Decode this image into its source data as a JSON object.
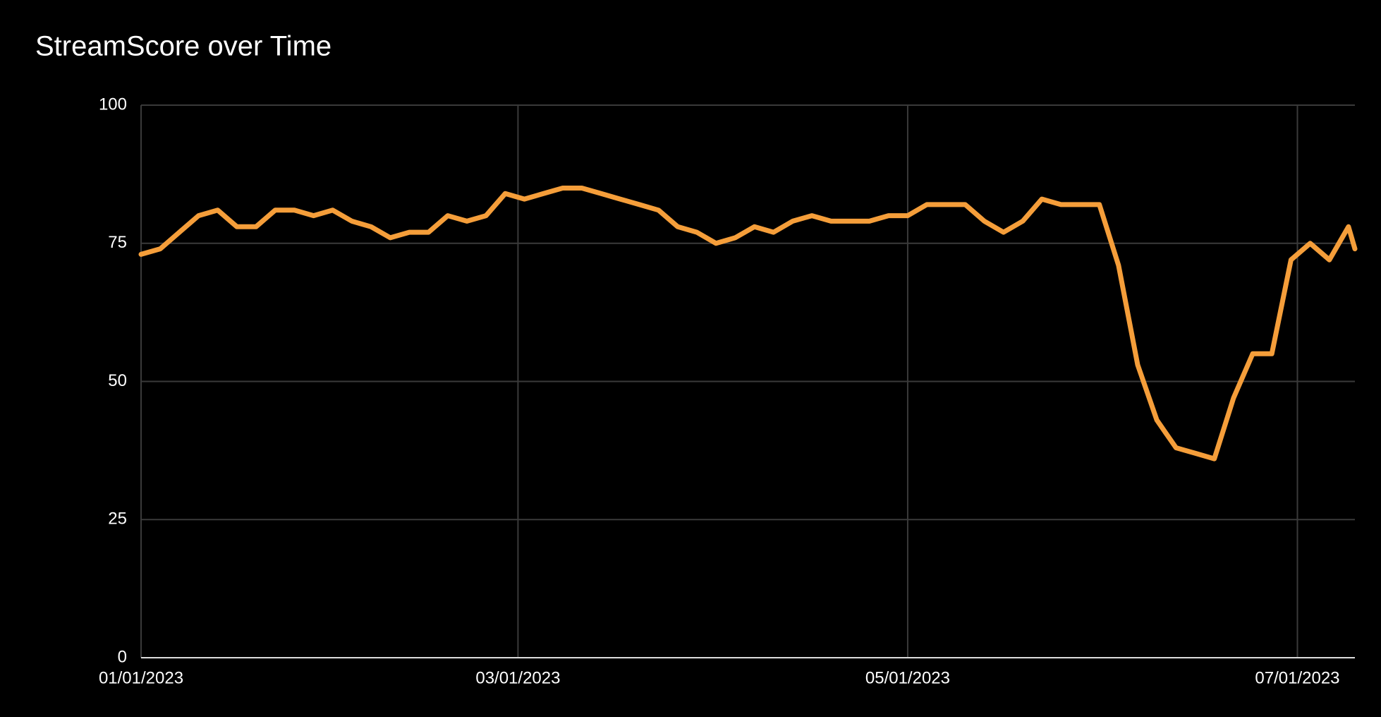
{
  "chart_data": {
    "type": "line",
    "title": "StreamScore over Time",
    "x": [
      "2023-01-01",
      "2023-01-04",
      "2023-01-07",
      "2023-01-10",
      "2023-01-13",
      "2023-01-16",
      "2023-01-19",
      "2023-01-22",
      "2023-01-25",
      "2023-01-28",
      "2023-01-31",
      "2023-02-03",
      "2023-02-06",
      "2023-02-09",
      "2023-02-12",
      "2023-02-15",
      "2023-02-18",
      "2023-02-21",
      "2023-02-24",
      "2023-02-27",
      "2023-03-02",
      "2023-03-05",
      "2023-03-08",
      "2023-03-11",
      "2023-03-14",
      "2023-03-17",
      "2023-03-20",
      "2023-03-23",
      "2023-03-26",
      "2023-03-29",
      "2023-04-01",
      "2023-04-04",
      "2023-04-07",
      "2023-04-10",
      "2023-04-13",
      "2023-04-16",
      "2023-04-19",
      "2023-04-22",
      "2023-04-25",
      "2023-04-28",
      "2023-05-01",
      "2023-05-04",
      "2023-05-07",
      "2023-05-10",
      "2023-05-13",
      "2023-05-16",
      "2023-05-19",
      "2023-05-22",
      "2023-05-25",
      "2023-05-28",
      "2023-05-31",
      "2023-06-03",
      "2023-06-06",
      "2023-06-09",
      "2023-06-12",
      "2023-06-15",
      "2023-06-18",
      "2023-06-21",
      "2023-06-24",
      "2023-06-27",
      "2023-06-30",
      "2023-07-03",
      "2023-07-06",
      "2023-07-09",
      "2023-07-10"
    ],
    "values": [
      73,
      74,
      77,
      80,
      81,
      78,
      78,
      81,
      81,
      80,
      81,
      79,
      78,
      76,
      77,
      77,
      80,
      79,
      80,
      84,
      83,
      84,
      85,
      85,
      84,
      83,
      82,
      81,
      78,
      77,
      75,
      76,
      78,
      77,
      79,
      80,
      79,
      79,
      79,
      80,
      80,
      82,
      82,
      82,
      79,
      77,
      79,
      83,
      82,
      82,
      82,
      71,
      53,
      43,
      38,
      37,
      36,
      47,
      55,
      55,
      72,
      75,
      72,
      78,
      74
    ],
    "color": "#f59e3a",
    "xlim": [
      "2023-01-01",
      "2023-07-10"
    ],
    "xticks": [
      {
        "value": "2023-01-01",
        "label": "01/01/2023"
      },
      {
        "value": "2023-03-01",
        "label": "03/01/2023"
      },
      {
        "value": "2023-05-01",
        "label": "05/01/2023"
      },
      {
        "value": "2023-07-01",
        "label": "07/01/2023"
      }
    ],
    "ylim": [
      0,
      100
    ],
    "yticks": [
      0,
      25,
      50,
      75,
      100
    ],
    "grid": true
  }
}
